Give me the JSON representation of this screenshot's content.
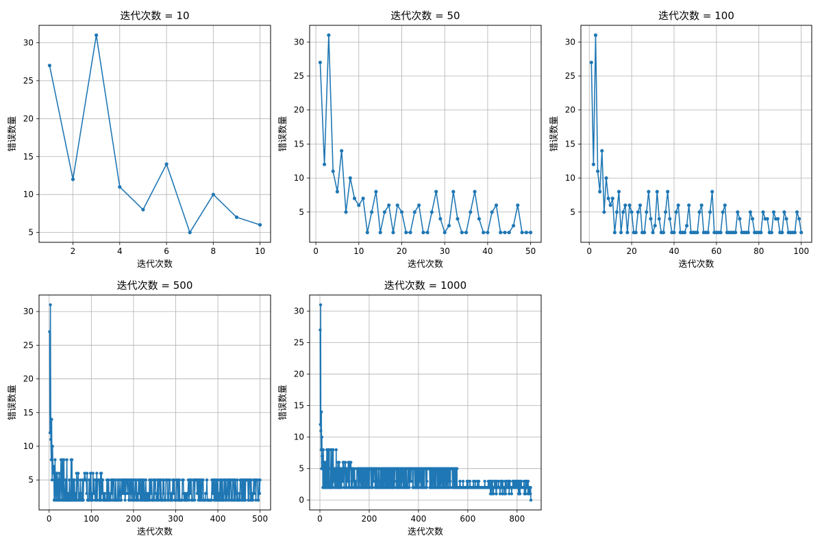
{
  "colors": {
    "series": "#1f77b4",
    "grid": "#b0b0b0",
    "background": "#ffffff"
  },
  "chart_data": [
    {
      "type": "line",
      "title": "迭代次数 = 10",
      "xlabel": "迭代次数",
      "ylabel": "错误数量",
      "grid": true,
      "marker": "circle",
      "xlim": [
        0.55,
        10.45
      ],
      "ylim": [
        3.7,
        32.3
      ],
      "xticks": [
        2,
        4,
        6,
        8,
        10
      ],
      "yticks": [
        5,
        10,
        15,
        20,
        25,
        30
      ],
      "series": [
        {
          "x": [
            1,
            2,
            3,
            4,
            5,
            6,
            7,
            8,
            9,
            10
          ],
          "y": [
            27,
            12,
            31,
            11,
            8,
            14,
            5,
            10,
            7,
            6
          ]
        }
      ]
    },
    {
      "type": "line",
      "title": "迭代次数 = 50",
      "xlabel": "迭代次数",
      "ylabel": "错误数量",
      "grid": true,
      "marker": "circle",
      "xlim": [
        -1.45,
        52.45
      ],
      "ylim": [
        0.55,
        32.45
      ],
      "xticks": [
        0,
        10,
        20,
        30,
        40,
        50
      ],
      "yticks": [
        5,
        10,
        15,
        20,
        25,
        30
      ],
      "series": [
        {
          "x": [
            1,
            2,
            3,
            4,
            5,
            6,
            7,
            8,
            9,
            10,
            11,
            12,
            13,
            14,
            15,
            16,
            17,
            18,
            19,
            20,
            21,
            22,
            23,
            24,
            25,
            26,
            27,
            28,
            29,
            30,
            31,
            32,
            33,
            34,
            35,
            36,
            37,
            38,
            39,
            40,
            41,
            42,
            43,
            44,
            45,
            46,
            47,
            48,
            49,
            50
          ],
          "y": [
            27,
            12,
            31,
            11,
            8,
            14,
            5,
            10,
            7,
            6,
            7,
            2,
            5,
            8,
            2,
            5,
            6,
            2,
            6,
            5,
            2,
            2,
            5,
            6,
            2,
            2,
            5,
            8,
            4,
            2,
            3,
            8,
            4,
            2,
            2,
            5,
            8,
            4,
            2,
            2,
            5,
            6,
            2,
            2,
            2,
            3,
            6,
            2,
            2,
            2
          ]
        }
      ]
    },
    {
      "type": "line",
      "title": "迭代次数 = 100",
      "xlabel": "迭代次数",
      "ylabel": "错误数量",
      "grid": true,
      "marker": "circle",
      "xlim": [
        -3.95,
        104.95
      ],
      "ylim": [
        0.55,
        32.45
      ],
      "xticks": [
        0,
        20,
        40,
        60,
        80,
        100
      ],
      "yticks": [
        5,
        10,
        15,
        20,
        25,
        30
      ],
      "series": [
        {
          "x": [
            1,
            2,
            3,
            4,
            5,
            6,
            7,
            8,
            9,
            10,
            11,
            12,
            13,
            14,
            15,
            16,
            17,
            18,
            19,
            20,
            21,
            22,
            23,
            24,
            25,
            26,
            27,
            28,
            29,
            30,
            31,
            32,
            33,
            34,
            35,
            36,
            37,
            38,
            39,
            40,
            41,
            42,
            43,
            44,
            45,
            46,
            47,
            48,
            49,
            50,
            51,
            52,
            53,
            54,
            55,
            56,
            57,
            58,
            59,
            60,
            61,
            62,
            63,
            64,
            65,
            66,
            67,
            68,
            69,
            70,
            71,
            72,
            73,
            74,
            75,
            76,
            77,
            78,
            79,
            80,
            81,
            82,
            83,
            84,
            85,
            86,
            87,
            88,
            89,
            90,
            91,
            92,
            93,
            94,
            95,
            96,
            97,
            98,
            99,
            100
          ],
          "y": [
            27,
            12,
            31,
            11,
            8,
            14,
            5,
            10,
            7,
            6,
            7,
            2,
            5,
            8,
            2,
            5,
            6,
            2,
            6,
            5,
            2,
            2,
            5,
            6,
            2,
            2,
            5,
            8,
            4,
            2,
            3,
            8,
            4,
            2,
            2,
            5,
            8,
            4,
            2,
            2,
            5,
            6,
            2,
            2,
            2,
            3,
            6,
            2,
            2,
            2,
            2,
            5,
            6,
            2,
            2,
            2,
            5,
            8,
            2,
            2,
            2,
            2,
            5,
            6,
            2,
            2,
            2,
            2,
            2,
            5,
            4,
            2,
            2,
            2,
            2,
            5,
            4,
            2,
            2,
            2,
            2,
            5,
            4,
            4,
            2,
            2,
            5,
            4,
            4,
            2,
            2,
            5,
            4,
            2,
            2,
            2,
            2,
            5,
            4,
            2
          ]
        }
      ]
    },
    {
      "type": "line",
      "title": "迭代次数 = 500",
      "xlabel": "迭代次数",
      "ylabel": "错误数量",
      "grid": true,
      "marker": "circle",
      "xlim": [
        -23.95,
        524.95
      ],
      "ylim": [
        0.55,
        32.45
      ],
      "xticks": [
        0,
        100,
        200,
        300,
        400,
        500
      ],
      "yticks": [
        5,
        10,
        15,
        20,
        25,
        30
      ],
      "series": [
        {
          "x": [
            1,
            2,
            3,
            4,
            5,
            6,
            7,
            8,
            9,
            10,
            11,
            12,
            13,
            14,
            15,
            16,
            17,
            18,
            19,
            20,
            21,
            22,
            23,
            24,
            25,
            26,
            27,
            28,
            29,
            30
          ],
          "y": [
            27,
            12,
            31,
            11,
            8,
            14,
            5,
            10,
            7,
            6,
            7,
            2,
            5,
            8,
            2,
            5,
            6,
            2,
            6,
            5,
            2,
            2,
            5,
            6,
            2,
            2,
            5,
            8,
            4,
            2
          ]
        }
      ]
    },
    {
      "type": "line",
      "title": "迭代次数 = 1000",
      "xlabel": "迭代次数",
      "ylabel": "错误数量",
      "grid": true,
      "marker": "circle",
      "xlim": [
        -41.7,
        897.7
      ],
      "ylim": [
        -1.55,
        32.55
      ],
      "xticks": [
        0,
        200,
        400,
        600,
        800
      ],
      "yticks": [
        0,
        5,
        10,
        15,
        20,
        25,
        30
      ],
      "series": [
        {
          "x": [
            1,
            2,
            3,
            4,
            5,
            6,
            7,
            8,
            9,
            10,
            11,
            12,
            13,
            14,
            15,
            16,
            17,
            18,
            19,
            20,
            21,
            22,
            23,
            24,
            25,
            26,
            27,
            28,
            29,
            30,
            852,
            853,
            854,
            855,
            856
          ],
          "y": [
            27,
            12,
            31,
            11,
            8,
            14,
            5,
            10,
            7,
            6,
            7,
            2,
            5,
            8,
            2,
            5,
            6,
            2,
            6,
            5,
            2,
            2,
            5,
            6,
            2,
            2,
            5,
            8,
            4,
            2,
            2,
            1,
            1,
            2,
            0
          ]
        }
      ]
    }
  ]
}
